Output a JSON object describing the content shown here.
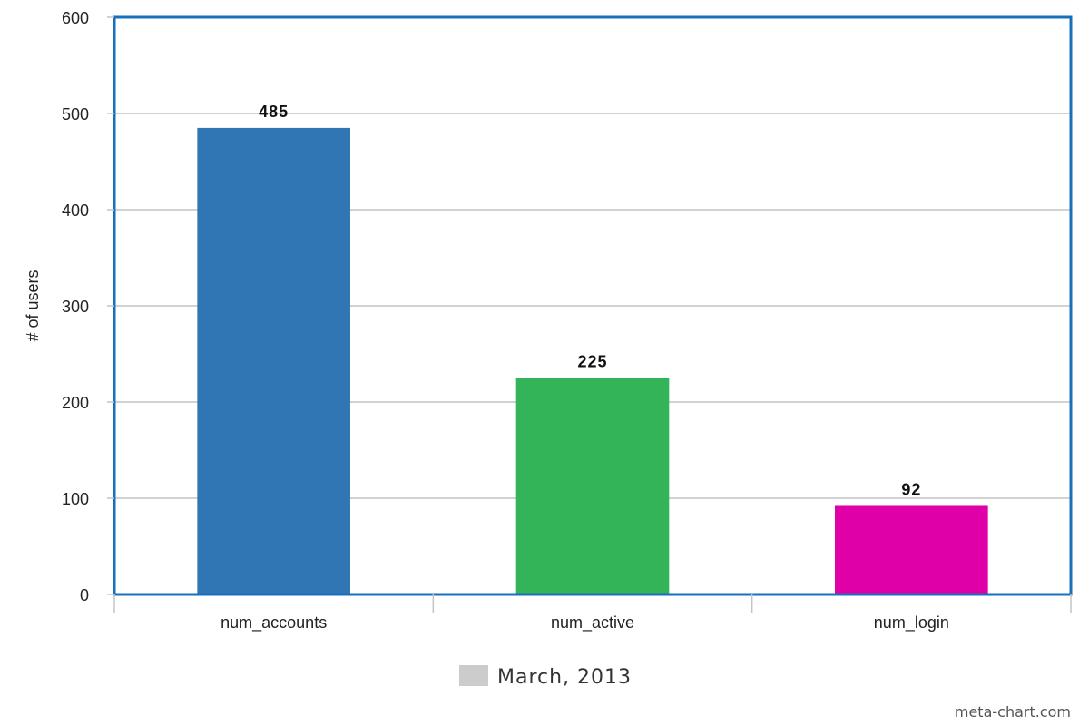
{
  "chart_data": {
    "type": "bar",
    "categories": [
      "num_accounts",
      "num_active",
      "num_login"
    ],
    "values": [
      485,
      225,
      92
    ],
    "data_labels": [
      "485",
      "225",
      "92"
    ],
    "bar_colors": [
      "#3176b4",
      "#33b458",
      "#e000a8"
    ],
    "title": "",
    "xlabel": "",
    "ylabel": "# of users",
    "ylim": [
      0,
      600
    ],
    "yticks": [
      0,
      100,
      200,
      300,
      400,
      500,
      600
    ],
    "ytick_labels": [
      "0",
      "100",
      "200",
      "300",
      "400",
      "500",
      "600"
    ],
    "grid": true,
    "legend": {
      "position": "bottom-center",
      "label": "March, 2013",
      "swatch_color": "#cccccc"
    },
    "plot_border_color": "#1a6fbd"
  },
  "watermark": "meta-chart.com"
}
